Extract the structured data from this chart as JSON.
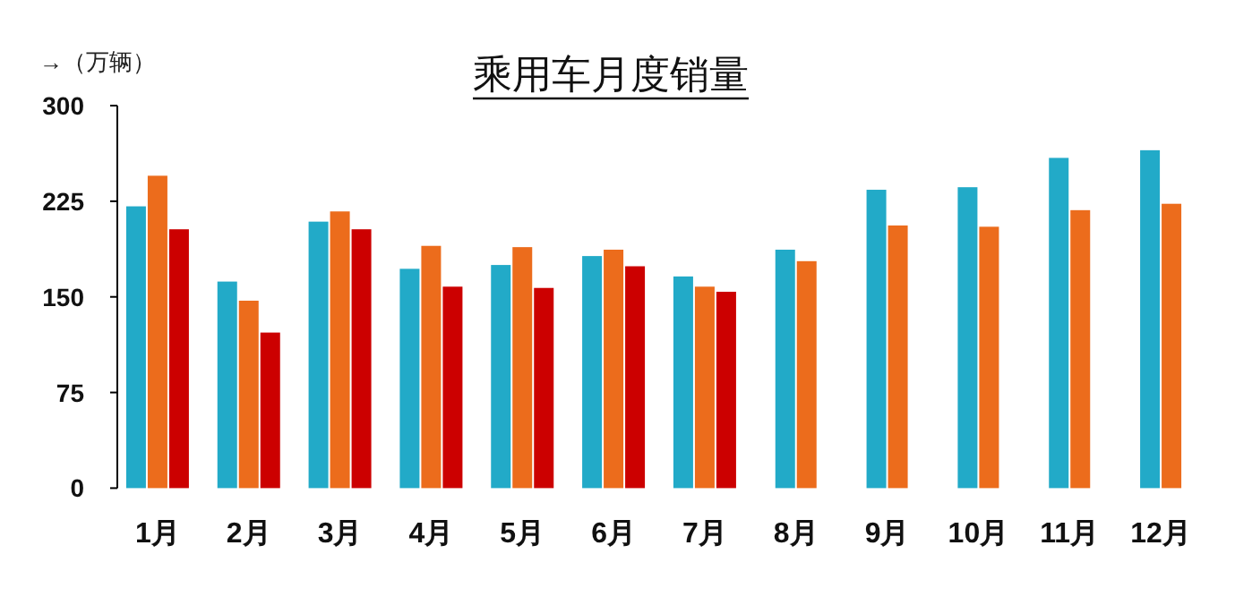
{
  "chart_data": {
    "type": "bar",
    "title": "乘用车月度销量",
    "ylabel": "→（万辆）",
    "categories": [
      "1月",
      "2月",
      "3月",
      "4月",
      "5月",
      "6月",
      "7月",
      "8月",
      "9月",
      "10月",
      "11月",
      "12月"
    ],
    "series": [
      {
        "color": "#22aac8",
        "values": [
          221,
          162,
          209,
          172,
          175,
          182,
          166,
          187,
          234,
          236,
          259,
          265
        ]
      },
      {
        "color": "#ec6c1c",
        "values": [
          245,
          147,
          217,
          190,
          189,
          187,
          158,
          178,
          206,
          205,
          218,
          223
        ]
      },
      {
        "color": "#cc0000",
        "values": [
          203,
          122,
          203,
          158,
          157,
          174,
          154,
          null,
          null,
          null,
          null,
          null
        ]
      }
    ],
    "ylim": [
      0,
      300
    ],
    "yticks": [
      0,
      75,
      150,
      225,
      300
    ],
    "grid": false
  }
}
